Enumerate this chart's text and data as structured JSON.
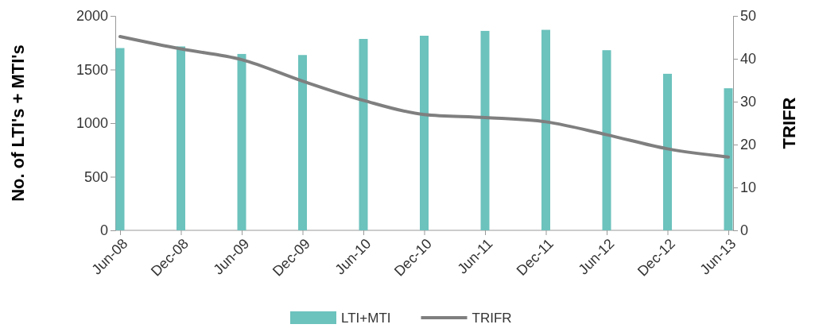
{
  "chart_data": {
    "type": "bar",
    "categories": [
      "Jun-08",
      "Dec-08",
      "Jun-09",
      "Dec-09",
      "Jun-10",
      "Dec-10",
      "Jun-11",
      "Dec-11",
      "Jun-12",
      "Dec-12",
      "Jun-13"
    ],
    "series": [
      {
        "name": "LTI+MTI",
        "color": "#6cc2bd",
        "values": [
          1700,
          1715,
          1645,
          1635,
          1785,
          1815,
          1860,
          1870,
          1680,
          1460,
          1325
        ]
      },
      {
        "name": "TRIFR",
        "type": "line",
        "axis": "y2",
        "color": "#7f7f7f",
        "values": [
          45.2,
          42.3,
          39.8,
          34.8,
          30.3,
          27.0,
          26.3,
          25.3,
          22.3,
          19.0,
          17.1
        ]
      }
    ],
    "ylabel": "No. of LTI's + MTI's",
    "y2label": "TRIFR",
    "ylim": [
      0,
      2000
    ],
    "yticks": [
      0,
      500,
      1000,
      1500,
      2000
    ],
    "y2lim": [
      0,
      50
    ],
    "y2ticks": [
      0,
      10,
      20,
      30,
      40,
      50
    ],
    "legend": "bottom",
    "line_style": "solid",
    "marker": "none",
    "grid": false
  }
}
